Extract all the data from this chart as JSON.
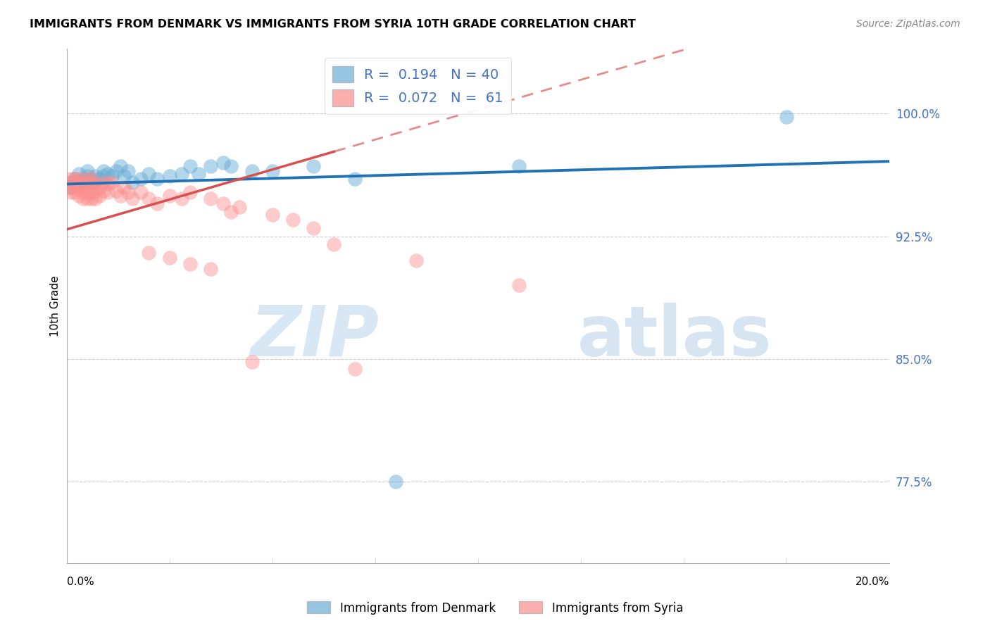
{
  "title": "IMMIGRANTS FROM DENMARK VS IMMIGRANTS FROM SYRIA 10TH GRADE CORRELATION CHART",
  "source": "Source: ZipAtlas.com",
  "ylabel": "10th Grade",
  "ytick_labels": [
    "77.5%",
    "85.0%",
    "92.5%",
    "100.0%"
  ],
  "ytick_values": [
    0.775,
    0.85,
    0.925,
    1.0
  ],
  "xlim": [
    0.0,
    0.2
  ],
  "ylim": [
    0.725,
    1.04
  ],
  "legend_blue_r": 0.194,
  "legend_blue_n": 40,
  "legend_pink_r": 0.072,
  "legend_pink_n": 61,
  "blue_color": "#6baed6",
  "pink_color": "#fc8d8d",
  "blue_trend_color": "#2171b5",
  "pink_trend_color": "#d94f4f",
  "blue_scatter_x": [
    0.001,
    0.002,
    0.002,
    0.003,
    0.003,
    0.004,
    0.004,
    0.005,
    0.005,
    0.006,
    0.006,
    0.007,
    0.007,
    0.008,
    0.009,
    0.009,
    0.01,
    0.011,
    0.012,
    0.013,
    0.014,
    0.015,
    0.016,
    0.018,
    0.02,
    0.022,
    0.025,
    0.028,
    0.03,
    0.032,
    0.035,
    0.038,
    0.04,
    0.045,
    0.05,
    0.06,
    0.07,
    0.08,
    0.11,
    0.175
  ],
  "blue_scatter_y": [
    0.955,
    0.96,
    0.958,
    0.963,
    0.958,
    0.96,
    0.957,
    0.962,
    0.965,
    0.96,
    0.958,
    0.962,
    0.958,
    0.96,
    0.965,
    0.962,
    0.963,
    0.962,
    0.965,
    0.968,
    0.962,
    0.965,
    0.958,
    0.96,
    0.963,
    0.96,
    0.962,
    0.963,
    0.968,
    0.963,
    0.968,
    0.97,
    0.968,
    0.965,
    0.965,
    0.968,
    0.96,
    0.775,
    0.968,
    0.998
  ],
  "pink_scatter_x": [
    0.001,
    0.001,
    0.001,
    0.001,
    0.002,
    0.002,
    0.002,
    0.002,
    0.003,
    0.003,
    0.003,
    0.003,
    0.004,
    0.004,
    0.004,
    0.004,
    0.005,
    0.005,
    0.005,
    0.005,
    0.006,
    0.006,
    0.006,
    0.006,
    0.007,
    0.007,
    0.007,
    0.008,
    0.008,
    0.009,
    0.009,
    0.01,
    0.01,
    0.011,
    0.012,
    0.013,
    0.014,
    0.015,
    0.016,
    0.018,
    0.02,
    0.022,
    0.025,
    0.028,
    0.03,
    0.035,
    0.038,
    0.04,
    0.042,
    0.05,
    0.055,
    0.06,
    0.065,
    0.02,
    0.025,
    0.03,
    0.035,
    0.045,
    0.07,
    0.085,
    0.11
  ],
  "pink_scatter_y": [
    0.96,
    0.958,
    0.955,
    0.952,
    0.96,
    0.958,
    0.955,
    0.952,
    0.96,
    0.957,
    0.955,
    0.95,
    0.958,
    0.955,
    0.952,
    0.948,
    0.96,
    0.957,
    0.952,
    0.948,
    0.96,
    0.957,
    0.952,
    0.948,
    0.957,
    0.953,
    0.948,
    0.955,
    0.95,
    0.958,
    0.953,
    0.957,
    0.952,
    0.958,
    0.953,
    0.95,
    0.955,
    0.952,
    0.948,
    0.952,
    0.948,
    0.945,
    0.95,
    0.948,
    0.952,
    0.948,
    0.945,
    0.94,
    0.943,
    0.938,
    0.935,
    0.93,
    0.92,
    0.915,
    0.912,
    0.908,
    0.905,
    0.848,
    0.844,
    0.91,
    0.895
  ],
  "pink_trend_solid_end": 0.065,
  "watermark_zip": "ZIP",
  "watermark_atlas": "atlas",
  "grid_color": "#cccccc",
  "background_color": "#ffffff"
}
